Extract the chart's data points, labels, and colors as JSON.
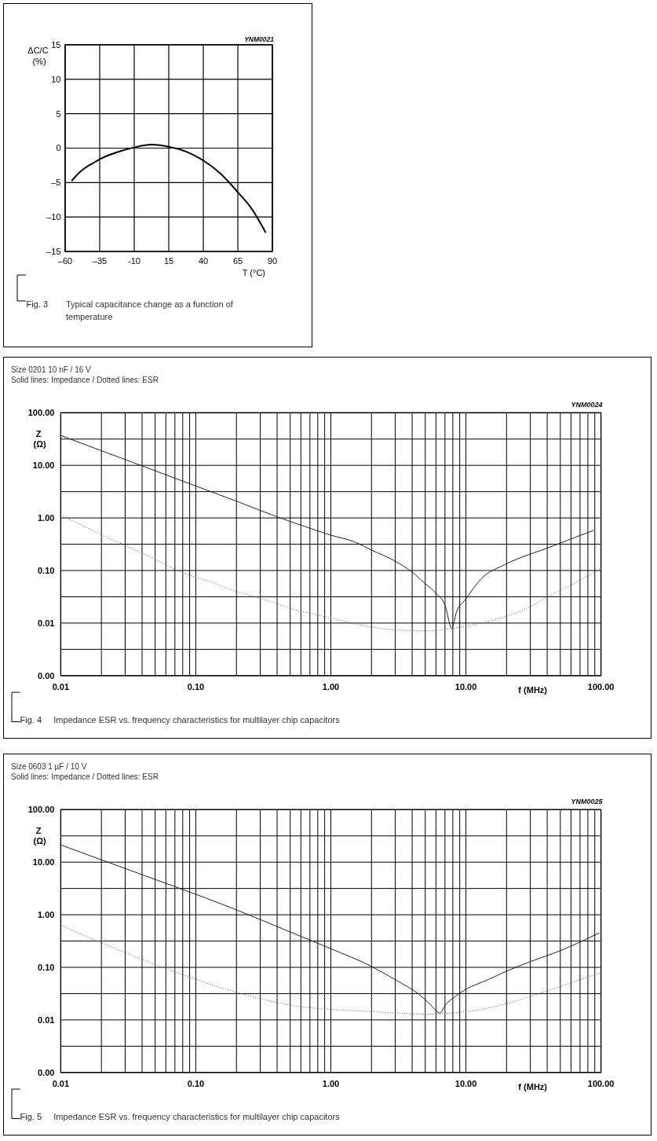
{
  "chart_data": [
    {
      "type": "line",
      "x": [
        -55,
        -50,
        -45,
        -40,
        -35,
        -22.5,
        -10,
        2.5,
        15,
        27.5,
        40,
        52.5,
        65,
        75,
        85
      ],
      "values": [
        -4.7,
        -3.6,
        -2.8,
        -2.2,
        -1.6,
        -0.6,
        0.1,
        0.5,
        0.2,
        -0.5,
        -1.8,
        -3.7,
        -6.4,
        -8.8,
        -12.2
      ],
      "color": "#000000",
      "xlim": [
        -60,
        90
      ],
      "ylim": [
        -15,
        15
      ],
      "xticks": [
        {
          "value": -60,
          "label": "–60"
        },
        {
          "value": -35,
          "label": "–35"
        },
        -10,
        15,
        40,
        65,
        90
      ],
      "yticks": [
        {
          "value": -15,
          "label": "–15"
        },
        {
          "value": -10,
          "label": "–10"
        },
        {
          "value": -5,
          "label": "–5"
        },
        0,
        5,
        10,
        15
      ],
      "xlabel": "T (°C)",
      "ylabel": "ΔC/C (%)",
      "grid": true,
      "annotations": [
        "YNM0021",
        "Fig. 3",
        "Typical capacitance change as a function of temperature"
      ]
    },
    {
      "type": "line",
      "title": "Size 0201 10 nF / 16 V",
      "subtitle": "Solid lines: Impedance / Dotted lines: ESR",
      "series": [
        {
          "color": "#222222",
          "line_style": "solid",
          "x": [
            0.01,
            0.02,
            0.05,
            0.1,
            0.2,
            0.4,
            0.75,
            1,
            1.5,
            2,
            3,
            4,
            5,
            6,
            7,
            7.87,
            8.5,
            9.9,
            13,
            19.5,
            41.6,
            88
          ],
          "values": [
            37,
            19,
            7.9,
            4.05,
            2.08,
            1.05,
            0.6,
            0.47,
            0.35,
            0.245,
            0.15,
            0.093,
            0.056,
            0.037,
            0.022,
            0.0079,
            0.016,
            0.028,
            0.07,
            0.13,
            0.277,
            0.58
          ]
        },
        {
          "color": "#555555",
          "line_style": "dotted",
          "x": [
            0.01,
            0.0196,
            0.0298,
            0.049,
            0.074,
            0.13,
            0.2,
            0.37,
            0.52,
            0.75,
            1.12,
            1.47,
            3.3,
            5.1,
            7.9,
            13,
            26.6,
            41.6,
            65,
            100
          ],
          "values": [
            1.15,
            0.49,
            0.3,
            0.169,
            0.099,
            0.06,
            0.04,
            0.025,
            0.0184,
            0.0148,
            0.0116,
            0.0098,
            0.0073,
            0.0071,
            0.0079,
            0.01,
            0.0178,
            0.033,
            0.059,
            0.11
          ]
        }
      ],
      "xlim": [
        0.01,
        100
      ],
      "ylim": [
        0.001,
        100
      ],
      "log": "xy",
      "xticks": [
        {
          "value": 0.01,
          "label": "0.01"
        },
        {
          "value": 0.02,
          "label": null
        },
        {
          "value": 0.03,
          "label": null
        },
        {
          "value": 0.04,
          "label": null
        },
        {
          "value": 0.05,
          "label": null
        },
        {
          "value": 0.06,
          "label": null
        },
        {
          "value": 0.07,
          "label": null
        },
        {
          "value": 0.08,
          "label": null
        },
        {
          "value": 0.09,
          "label": null
        },
        {
          "value": 0.1,
          "label": "0.10"
        },
        {
          "value": 0.2,
          "label": null
        },
        {
          "value": 0.3,
          "label": null
        },
        {
          "value": 0.4,
          "label": null
        },
        {
          "value": 0.5,
          "label": null
        },
        {
          "value": 0.6,
          "label": null
        },
        {
          "value": 0.7,
          "label": null
        },
        {
          "value": 0.8,
          "label": null
        },
        {
          "value": 0.9,
          "label": null
        },
        {
          "value": 1,
          "label": "1.00"
        },
        {
          "value": 2,
          "label": null
        },
        {
          "value": 3,
          "label": null
        },
        {
          "value": 4,
          "label": null
        },
        {
          "value": 5,
          "label": null
        },
        {
          "value": 6,
          "label": null
        },
        {
          "value": 7,
          "label": null
        },
        {
          "value": 8,
          "label": null
        },
        {
          "value": 9,
          "label": null
        },
        {
          "value": 10,
          "label": "10.00"
        },
        {
          "value": 20,
          "label": null
        },
        {
          "value": 30,
          "label": null
        },
        {
          "value": 40,
          "label": null
        },
        {
          "value": 50,
          "label": null
        },
        {
          "value": 60,
          "label": null
        },
        {
          "value": 70,
          "label": null
        },
        {
          "value": 80,
          "label": null
        },
        {
          "value": 90,
          "label": null
        },
        {
          "value": 100,
          "label": "100.00"
        }
      ],
      "yticks": [
        {
          "value": 0.001,
          "label": "0.00"
        },
        {
          "value": 0.003162,
          "label": null
        },
        {
          "value": 0.01,
          "label": "0.01"
        },
        {
          "value": 0.03162,
          "label": null
        },
        {
          "value": 0.1,
          "label": "0.10"
        },
        {
          "value": 0.3162,
          "label": null
        },
        {
          "value": 1,
          "label": "1.00"
        },
        {
          "value": 3.162,
          "label": null
        },
        {
          "value": 10,
          "label": "10.00"
        },
        {
          "value": 31.62,
          "label": null
        },
        {
          "value": 100,
          "label": "100.00"
        }
      ],
      "xlabel": "f (MHz)",
      "ylabel": "Z (Ω)",
      "grid": true,
      "annotations": [
        "YNM0024",
        "Fig. 4",
        "Impedance ESR vs. frequency characteristics for multilayer chip capacitors"
      ]
    },
    {
      "type": "line",
      "title": "Size 0603 1 µF / 10 V",
      "subtitle": "Solid lines: Impedance / Dotted lines: ESR",
      "series": [
        {
          "color": "#222222",
          "line_style": "solid",
          "x": [
            0.01,
            0.02,
            0.05,
            0.1,
            0.2,
            0.5,
            1,
            2,
            3,
            4.47,
            5.35,
            6.45,
            6.98,
            8.35,
            9.97,
            14.3,
            20.1,
            30.4,
            49.6,
            97
          ],
          "values": [
            21.3,
            11.1,
            4.7,
            2.45,
            1.24,
            0.47,
            0.226,
            0.104,
            0.058,
            0.031,
            0.0207,
            0.0135,
            0.0185,
            0.028,
            0.038,
            0.057,
            0.085,
            0.13,
            0.206,
            0.45
          ]
        },
        {
          "color": "#555555",
          "line_style": "dotted",
          "x": [
            0.01,
            0.019,
            0.057,
            0.2,
            0.58,
            1.34,
            3,
            5.1,
            8,
            11.9,
            20.4,
            41.6,
            100
          ],
          "values": [
            0.63,
            0.31,
            0.1,
            0.0335,
            0.018,
            0.0152,
            0.0136,
            0.0129,
            0.0136,
            0.0152,
            0.0207,
            0.037,
            0.08
          ]
        }
      ],
      "xlim": [
        0.01,
        100
      ],
      "ylim": [
        0.001,
        100
      ],
      "log": "xy",
      "xticks": [
        {
          "value": 0.01,
          "label": "0.01"
        },
        {
          "value": 0.02,
          "label": null
        },
        {
          "value": 0.03,
          "label": null
        },
        {
          "value": 0.04,
          "label": null
        },
        {
          "value": 0.05,
          "label": null
        },
        {
          "value": 0.06,
          "label": null
        },
        {
          "value": 0.07,
          "label": null
        },
        {
          "value": 0.08,
          "label": null
        },
        {
          "value": 0.09,
          "label": null
        },
        {
          "value": 0.1,
          "label": "0.10"
        },
        {
          "value": 0.2,
          "label": null
        },
        {
          "value": 0.3,
          "label": null
        },
        {
          "value": 0.4,
          "label": null
        },
        {
          "value": 0.5,
          "label": null
        },
        {
          "value": 0.6,
          "label": null
        },
        {
          "value": 0.7,
          "label": null
        },
        {
          "value": 0.8,
          "label": null
        },
        {
          "value": 0.9,
          "label": null
        },
        {
          "value": 1,
          "label": "1.00"
        },
        {
          "value": 2,
          "label": null
        },
        {
          "value": 3,
          "label": null
        },
        {
          "value": 4,
          "label": null
        },
        {
          "value": 5,
          "label": null
        },
        {
          "value": 6,
          "label": null
        },
        {
          "value": 7,
          "label": null
        },
        {
          "value": 8,
          "label": null
        },
        {
          "value": 9,
          "label": null
        },
        {
          "value": 10,
          "label": "10.00"
        },
        {
          "value": 20,
          "label": null
        },
        {
          "value": 30,
          "label": null
        },
        {
          "value": 40,
          "label": null
        },
        {
          "value": 50,
          "label": null
        },
        {
          "value": 60,
          "label": null
        },
        {
          "value": 70,
          "label": null
        },
        {
          "value": 80,
          "label": null
        },
        {
          "value": 90,
          "label": null
        },
        {
          "value": 100,
          "label": "100.00"
        }
      ],
      "yticks": [
        {
          "value": 0.001,
          "label": "0.00"
        },
        {
          "value": 0.003162,
          "label": null
        },
        {
          "value": 0.01,
          "label": "0.01"
        },
        {
          "value": 0.03162,
          "label": null
        },
        {
          "value": 0.1,
          "label": "0.10"
        },
        {
          "value": 0.3162,
          "label": null
        },
        {
          "value": 1,
          "label": "1.00"
        },
        {
          "value": 3.162,
          "label": null
        },
        {
          "value": 10,
          "label": "10.00"
        },
        {
          "value": 31.62,
          "label": null
        },
        {
          "value": 100,
          "label": "100.00"
        }
      ],
      "xlabel": "f (MHz)",
      "ylabel": "Z (Ω)",
      "grid": true,
      "annotations": [
        "YNM0025",
        "Fig. 5",
        "Impedance ESR vs. frequency characteristics for multilayer chip capacitors"
      ]
    }
  ]
}
